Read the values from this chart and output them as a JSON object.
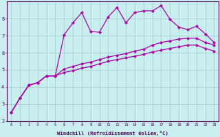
{
  "xlabel": "Windchill (Refroidissement éolien,°C)",
  "background_color": "#c8eef0",
  "grid_color": "#a0ccc8",
  "line_color": "#aa00aa",
  "x_data": [
    0,
    1,
    2,
    3,
    4,
    5,
    6,
    7,
    8,
    9,
    10,
    11,
    12,
    13,
    14,
    15,
    16,
    17,
    18,
    19,
    20,
    21,
    22,
    23
  ],
  "y_upper": [
    2.5,
    3.35,
    4.1,
    4.25,
    4.65,
    4.65,
    7.05,
    7.75,
    8.35,
    7.25,
    7.2,
    8.1,
    8.65,
    7.75,
    8.35,
    8.45,
    8.45,
    8.75,
    7.95,
    7.5,
    7.35,
    7.55,
    7.1,
    6.6
  ],
  "y_lower": [
    2.5,
    3.35,
    4.1,
    4.25,
    4.65,
    4.65,
    5.05,
    5.2,
    5.35,
    5.45,
    5.6,
    5.75,
    5.85,
    5.95,
    6.1,
    6.2,
    6.45,
    6.6,
    6.7,
    6.8,
    6.85,
    6.85,
    6.6,
    6.45
  ],
  "y_mid": [
    2.5,
    3.35,
    4.1,
    4.25,
    4.65,
    4.65,
    4.85,
    4.95,
    5.1,
    5.2,
    5.35,
    5.5,
    5.6,
    5.7,
    5.8,
    5.9,
    6.05,
    6.15,
    6.25,
    6.35,
    6.45,
    6.45,
    6.25,
    6.1
  ],
  "ylim": [
    2,
    9
  ],
  "xlim_min": -0.5,
  "xlim_max": 23.5,
  "yticks": [
    2,
    3,
    4,
    5,
    6,
    7,
    8
  ],
  "xticks": [
    0,
    1,
    2,
    3,
    4,
    5,
    6,
    7,
    8,
    9,
    10,
    11,
    12,
    13,
    14,
    15,
    16,
    17,
    18,
    19,
    20,
    21,
    22,
    23
  ]
}
